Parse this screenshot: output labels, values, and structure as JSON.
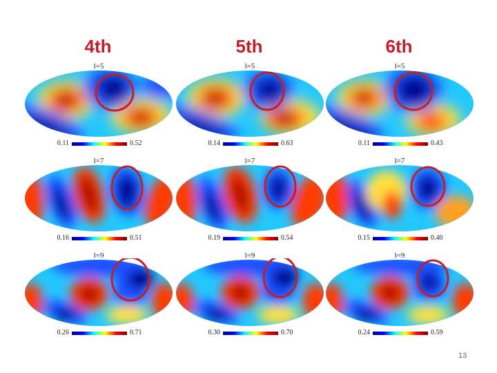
{
  "columns": [
    "4th",
    "5th",
    "6th"
  ],
  "rows": [
    {
      "l_label": "l=5",
      "panels": [
        {
          "min": "0.11",
          "max": "0.52"
        },
        {
          "min": "0.14",
          "max": "0.63"
        },
        {
          "min": "0.11",
          "max": "0.43"
        }
      ]
    },
    {
      "l_label": "l=7",
      "panels": [
        {
          "min": "0.16",
          "max": "0.51"
        },
        {
          "min": "0.19",
          "max": "0.54"
        },
        {
          "min": "0.15",
          "max": "0.40"
        }
      ]
    },
    {
      "l_label": "l=9",
      "panels": [
        {
          "min": "0.26",
          "max": "0.71"
        },
        {
          "min": "0.30",
          "max": "0.70"
        },
        {
          "min": "0.24",
          "max": "0.59"
        }
      ]
    }
  ],
  "colorbar_colors": [
    "#00008f",
    "#0000ff",
    "#00ffff",
    "#ffff00",
    "#ff0000",
    "#800000"
  ],
  "highlight_color": "#c41e2a",
  "page_number": "13"
}
